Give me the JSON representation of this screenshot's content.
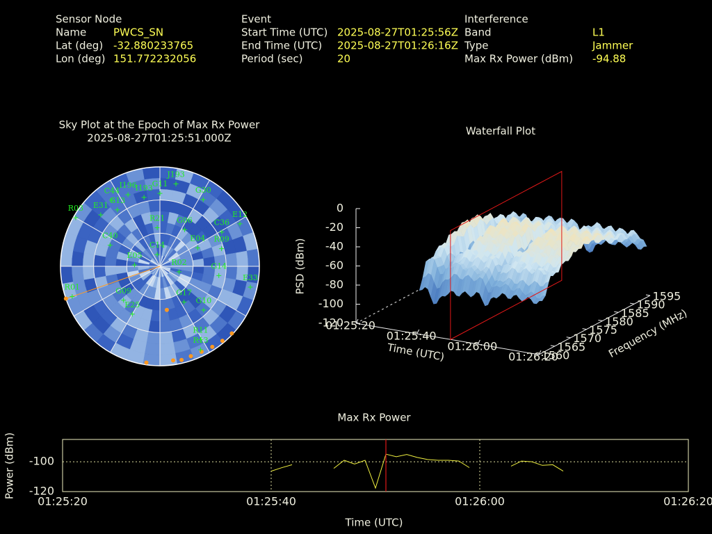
{
  "header": {
    "sensor_node": {
      "title": "Sensor Node",
      "fields": [
        {
          "label": "Name",
          "value": "PWCS_SN"
        },
        {
          "label": "Lat (deg)",
          "value": -32.880233765
        },
        {
          "label": "Lon (deg)",
          "value": 151.772232056
        }
      ]
    },
    "event": {
      "title": "Event",
      "fields": [
        {
          "label": "Start Time (UTC)",
          "value": "2025-08-27T01:25:56Z"
        },
        {
          "label": "End Time (UTC)",
          "value": "2025-08-27T01:26:16Z"
        },
        {
          "label": "Period (sec)",
          "value": 20
        }
      ]
    },
    "interference": {
      "title": "Interference",
      "fields": [
        {
          "label": "Band",
          "value": "L1"
        },
        {
          "label": "Type",
          "value": "Jammer"
        },
        {
          "label": "Max Rx Power (dBm)",
          "value": -94.88
        }
      ]
    }
  },
  "sky_plot": {
    "title": "Sky Plot at the Epoch of Max Rx Power",
    "subtitle": "2025-08-27T01:25:51.000Z",
    "satellites": [
      {
        "label": "J193",
        "az": 11,
        "el": 14
      },
      {
        "label": "G11",
        "az": 0,
        "el": 24
      },
      {
        "label": "G30",
        "az": 33,
        "el": 18
      },
      {
        "label": "C44",
        "az": 324,
        "el": 16
      },
      {
        "label": "I196",
        "az": 336,
        "el": 19
      },
      {
        "label": "I193",
        "az": 347,
        "el": 26
      },
      {
        "label": "G13",
        "az": 323,
        "el": 26
      },
      {
        "label": "R03",
        "az": 300,
        "el": 2
      },
      {
        "label": "E31",
        "az": 311,
        "el": 19
      },
      {
        "label": "E12",
        "az": 62,
        "el": 8
      },
      {
        "label": "C36",
        "az": 61,
        "el": 26
      },
      {
        "label": "R21",
        "az": 356,
        "el": 55
      },
      {
        "label": "G06",
        "az": 34,
        "el": 50
      },
      {
        "label": "R09",
        "az": 74,
        "el": 32
      },
      {
        "label": "E04",
        "az": 64,
        "el": 52
      },
      {
        "label": "C40",
        "az": 293,
        "el": 41
      },
      {
        "label": "C14",
        "az": 347,
        "el": 79
      },
      {
        "label": "G14",
        "az": 99,
        "el": 36
      },
      {
        "label": "E33",
        "az": 103,
        "el": 6
      },
      {
        "label": "G09",
        "az": 227,
        "el": 45
      },
      {
        "label": "E25",
        "az": 210,
        "el": 40
      },
      {
        "label": "G17",
        "az": 146,
        "el": 51
      },
      {
        "label": "G10",
        "az": 135,
        "el": 34
      },
      {
        "label": "R11",
        "az": 151,
        "el": 14
      },
      {
        "label": "R13",
        "az": 154,
        "el": 6
      },
      {
        "label": "R01",
        "az": 251,
        "el": 6
      },
      {
        "label": "E05",
        "az": 273,
        "el": 67
      },
      {
        "label": "R02",
        "az": 106,
        "el": 72
      }
    ],
    "jammer_track": [
      {
        "az": 188,
        "el": 2
      },
      {
        "az": 172,
        "el": 4
      },
      {
        "az": 167,
        "el": 3
      },
      {
        "az": 161,
        "el": 4
      },
      {
        "az": 154,
        "el": 4
      },
      {
        "az": 147,
        "el": 3
      },
      {
        "az": 140,
        "el": 2
      },
      {
        "az": 133,
        "el": 1
      },
      {
        "az": 251,
        "el": 0
      },
      {
        "az": 171,
        "el": 50
      }
    ]
  },
  "chart_data": [
    {
      "type": "waterfall3d",
      "title": "Waterfall Plot",
      "zlabel": "PSD (dBm)",
      "xlabel": "Time (UTC)",
      "ylabel": "Frequency (MHz)",
      "xlim": [
        "01:25:20",
        "01:26:20"
      ],
      "xticks": [
        "01:25:20",
        "01:25:40",
        "01:26:00",
        "01:26:20"
      ],
      "ylim": [
        1560,
        1595
      ],
      "yticks": [
        1560,
        1565,
        1570,
        1575,
        1580,
        1585,
        1590,
        1595
      ],
      "zlim": [
        -120,
        0
      ],
      "zticks": [
        0,
        -20,
        -40,
        -60,
        -80,
        -100,
        -120
      ],
      "marker_time": "01:25:51",
      "marker_color": "#e01818"
    },
    {
      "type": "line",
      "title": "Max Rx Power",
      "xlabel": "Time (UTC)",
      "ylabel": "Power (dBm)",
      "color": "#f0f040",
      "x": [
        "01:25:40",
        "01:25:41",
        "01:25:42",
        "01:25:44",
        "01:25:46",
        "01:25:47",
        "01:25:48",
        "01:25:49",
        "01:25:50",
        "01:25:51",
        "01:25:52",
        "01:25:53",
        "01:25:54",
        "01:25:55",
        "01:25:56",
        "01:25:57",
        "01:25:58",
        "01:25:59",
        "01:26:01",
        "01:26:03",
        "01:26:04",
        "01:26:05",
        "01:26:06",
        "01:26:07",
        "01:26:08"
      ],
      "values": [
        -106.3,
        -104,
        -102,
        null,
        -104.4,
        -99,
        -101.5,
        -99,
        -117.6,
        -94.9,
        -96.6,
        -95.1,
        -97.1,
        -98.5,
        -99,
        -99,
        -99.5,
        -103.9,
        null,
        -102.9,
        -99.5,
        -100,
        -102.4,
        -102,
        -106.3
      ],
      "xlim": [
        "01:25:20",
        "01:26:20"
      ],
      "xticks": [
        "01:25:20",
        "01:25:40",
        "01:26:00",
        "01:26:20"
      ],
      "ylim": [
        -120,
        -85
      ],
      "yticks": [
        -100,
        -120
      ],
      "grid": true,
      "marker_time": "01:25:51",
      "marker_color": "#e01818"
    }
  ]
}
